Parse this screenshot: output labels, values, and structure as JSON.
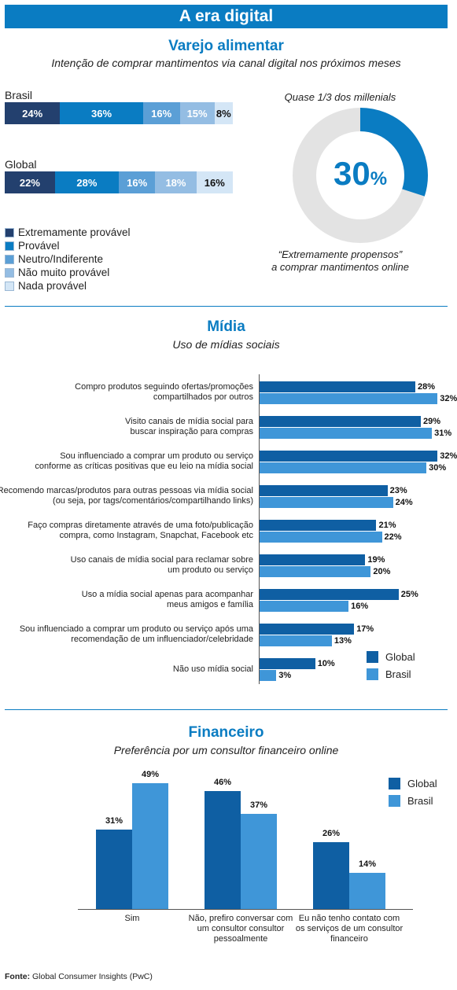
{
  "banner_title": "A era digital",
  "retail": {
    "title": "Varejo alimentar",
    "subtitle": "Intenção de comprar mantimentos via canal digital nos próximos meses",
    "donut_top": "Quase 1/3 dos millenials",
    "donut_value": "30",
    "donut_unit": "%",
    "donut_caption_1": "“Extremamente propensos”",
    "donut_caption_2": "a comprar mantimentos online"
  },
  "media": {
    "title": "Mídia",
    "subtitle": "Uso de mídias sociais"
  },
  "finance": {
    "title": "Financeiro",
    "subtitle": "Preferência por um consultor financeiro online"
  },
  "source_label": "Fonte:",
  "source_text": "Global Consumer Insights (PwC)",
  "colors": {
    "accent": "#0a7cc2",
    "extremamente": "#23406e",
    "provavel": "#0a7cc2",
    "neutro": "#5b9fd6",
    "nao_muito": "#94bde3",
    "nada": "#d4e6f6",
    "global": "#0f5fa3",
    "brasil": "#3f96d8",
    "donut_rest": "#e3e3e3"
  },
  "chart_data": [
    {
      "type": "bar",
      "orientation": "horizontal-stacked-100",
      "categories": [
        "Brasil",
        "Global"
      ],
      "series": [
        {
          "name": "Extremamente provável",
          "values": [
            24,
            22
          ]
        },
        {
          "name": "Provável",
          "values": [
            36,
            28
          ]
        },
        {
          "name": "Neutro/Indiferente",
          "values": [
            16,
            16
          ]
        },
        {
          "name": "Não muito provável",
          "values": [
            15,
            18
          ]
        },
        {
          "name": "Nada provável",
          "values": [
            8,
            16
          ]
        }
      ],
      "legend_position": "bottom-left"
    },
    {
      "type": "pie",
      "variant": "donut",
      "values": [
        30,
        70
      ],
      "highlight_value": 30
    },
    {
      "type": "bar",
      "orientation": "horizontal",
      "categories": [
        [
          "Compro produtos seguindo ofertas/promoções",
          "compartilhados por outros"
        ],
        [
          "Visito canais de mídia social para",
          "buscar inspiração para compras"
        ],
        [
          "Sou influenciado a comprar um produto ou serviço",
          "conforme as críticas positivas que eu leio na mídia social"
        ],
        [
          "Recomendo marcas/produtos para outras pessoas via mídia social",
          "(ou seja, por tags/comentários/compartilhando links)"
        ],
        [
          "Faço compras diretamente através de uma foto/publicação",
          "compra, como Instagram, Snapchat, Facebook etc"
        ],
        [
          "Uso canais de mídia social para reclamar sobre",
          "um produto ou serviço"
        ],
        [
          "Uso a mídia social apenas para acompanhar",
          "meus amigos e família"
        ],
        [
          "Sou influenciado a comprar um produto ou serviço após uma",
          "recomendação de um influenciador/celebridade"
        ],
        [
          "Não uso mídia social"
        ]
      ],
      "series": [
        {
          "name": "Global",
          "values": [
            28,
            29,
            32,
            23,
            21,
            19,
            25,
            17,
            10
          ]
        },
        {
          "name": "Brasil",
          "values": [
            32,
            31,
            30,
            24,
            22,
            20,
            16,
            13,
            3
          ]
        }
      ],
      "value_suffix": "%",
      "legend_position": "bottom-right"
    },
    {
      "type": "bar",
      "orientation": "vertical",
      "categories": [
        [
          "Sim"
        ],
        [
          "Não, prefiro conversar com",
          "um consultor consultor",
          "pessoalmente"
        ],
        [
          "Eu não tenho contato com",
          "os serviços de um consultor",
          "financeiro"
        ]
      ],
      "series": [
        {
          "name": "Global",
          "values": [
            31,
            46,
            26
          ]
        },
        {
          "name": "Brasil",
          "values": [
            49,
            37,
            14
          ]
        }
      ],
      "value_suffix": "%",
      "legend_position": "top-right"
    }
  ]
}
